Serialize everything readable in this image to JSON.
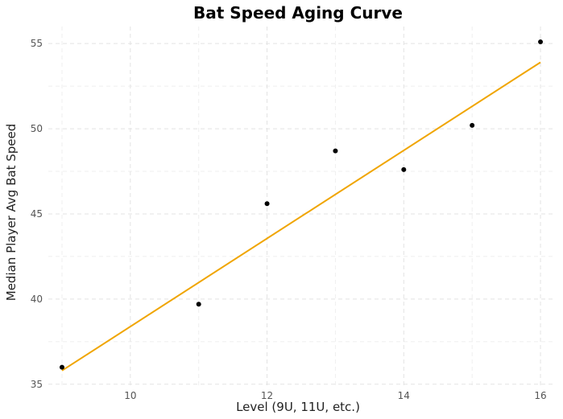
{
  "chart_data": {
    "type": "scatter",
    "title": "Bat Speed Aging Curve",
    "xlabel": "Level (9U, 11U, etc.)",
    "ylabel": "Median Player Avg Bat Speed",
    "xlim": [
      8.8,
      16.2
    ],
    "ylim": [
      34.8,
      56.0
    ],
    "x_ticks": [
      10,
      12,
      14,
      16
    ],
    "y_ticks": [
      35,
      40,
      45,
      50,
      55
    ],
    "x_minor_ticks": [
      9,
      11,
      13,
      15
    ],
    "y_minor_ticks": [
      37.5,
      42.5,
      47.5,
      52.5
    ],
    "grid": true,
    "legend": "none",
    "series": [
      {
        "type": "scatter",
        "color": "#000000",
        "x": [
          9,
          11,
          12,
          13,
          14,
          15,
          16
        ],
        "y": [
          36.0,
          39.7,
          45.6,
          48.7,
          47.6,
          50.2,
          55.1
        ]
      },
      {
        "type": "line",
        "color": "#f0a500",
        "x": [
          9,
          16
        ],
        "y": [
          35.8,
          53.9
        ]
      }
    ]
  }
}
